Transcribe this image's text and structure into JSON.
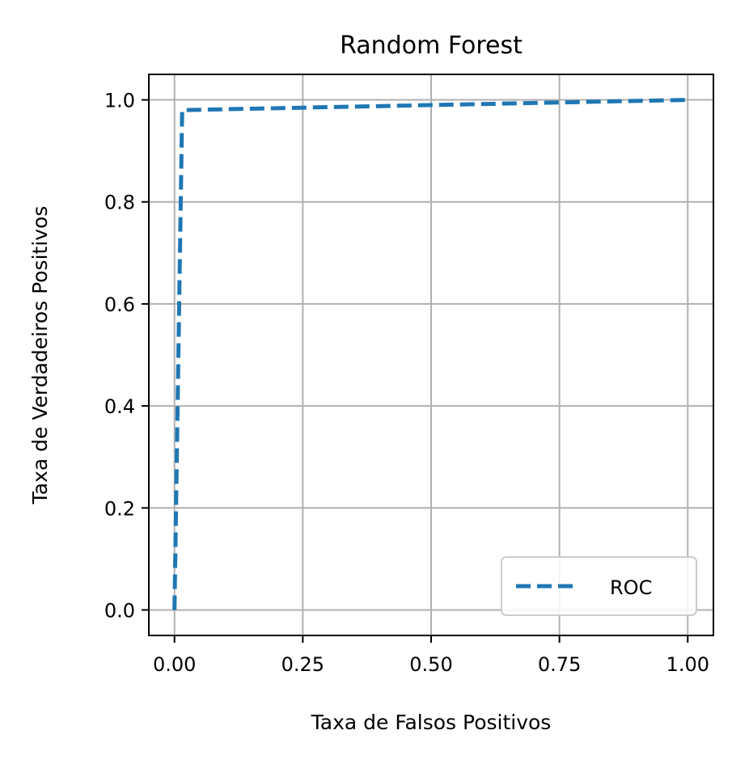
{
  "chart_data": {
    "type": "line",
    "title": "Random Forest",
    "xlabel": "Taxa de Falsos Positivos",
    "ylabel": "Taxa de Verdadeiros Positivos",
    "xlim": [
      -0.05,
      1.05
    ],
    "ylim": [
      -0.05,
      1.05
    ],
    "xticks": [
      "0.00",
      "0.25",
      "0.50",
      "0.75",
      "1.00"
    ],
    "yticks": [
      "0.0",
      "0.2",
      "0.4",
      "0.6",
      "0.8",
      "1.0"
    ],
    "grid": true,
    "legend_position": "lower-right",
    "series": [
      {
        "name": "ROC",
        "color": "#1f77b4",
        "line_style": "dashed",
        "x": [
          0.0,
          0.0,
          0.015,
          1.0
        ],
        "y": [
          0.0,
          0.0,
          0.98,
          1.0
        ]
      }
    ]
  }
}
